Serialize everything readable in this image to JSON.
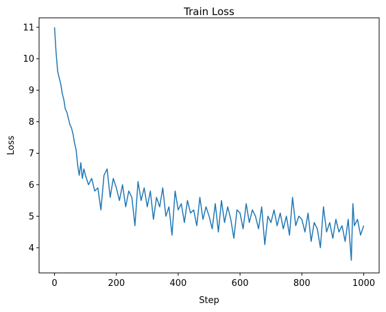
{
  "chart_data": {
    "type": "line",
    "title": "Train Loss",
    "xlabel": "Step",
    "ylabel": "Loss",
    "xlim": [
      -50,
      1050
    ],
    "ylim": [
      3.2,
      11.3
    ],
    "xticks": [
      0,
      200,
      400,
      600,
      800,
      1000
    ],
    "yticks": [
      4,
      5,
      6,
      7,
      8,
      9,
      10,
      11
    ],
    "grid": false,
    "legend": "none",
    "series": [
      {
        "color": "#1f77b4",
        "x": [
          0,
          5,
          10,
          15,
          20,
          25,
          30,
          35,
          40,
          45,
          50,
          55,
          60,
          65,
          70,
          75,
          80,
          85,
          90,
          95,
          100,
          110,
          120,
          130,
          140,
          150,
          160,
          170,
          180,
          190,
          200,
          210,
          220,
          230,
          240,
          250,
          260,
          270,
          280,
          290,
          300,
          310,
          320,
          330,
          340,
          350,
          360,
          370,
          380,
          390,
          400,
          410,
          420,
          430,
          440,
          450,
          460,
          470,
          480,
          490,
          500,
          510,
          520,
          530,
          540,
          550,
          560,
          570,
          580,
          590,
          600,
          610,
          620,
          630,
          640,
          650,
          660,
          670,
          680,
          690,
          700,
          710,
          720,
          730,
          740,
          750,
          760,
          770,
          780,
          790,
          800,
          810,
          820,
          830,
          840,
          850,
          860,
          870,
          880,
          890,
          900,
          910,
          920,
          930,
          940,
          950,
          960,
          965,
          970,
          980,
          990,
          1000
        ],
        "y": [
          11.0,
          10.2,
          9.6,
          9.4,
          9.2,
          8.9,
          8.7,
          8.4,
          8.3,
          8.1,
          7.9,
          7.8,
          7.6,
          7.3,
          7.1,
          6.6,
          6.3,
          6.7,
          6.2,
          6.5,
          6.3,
          6.0,
          6.2,
          5.8,
          5.9,
          5.2,
          6.3,
          6.5,
          5.6,
          6.2,
          5.9,
          5.5,
          6.0,
          5.3,
          5.8,
          5.6,
          4.7,
          6.1,
          5.5,
          5.9,
          5.3,
          5.8,
          4.9,
          5.6,
          5.3,
          5.9,
          5.0,
          5.3,
          4.4,
          5.8,
          5.2,
          5.4,
          4.8,
          5.5,
          5.1,
          5.2,
          4.7,
          5.6,
          4.9,
          5.3,
          5.0,
          4.6,
          5.4,
          4.5,
          5.5,
          4.8,
          5.3,
          4.9,
          4.3,
          5.2,
          5.1,
          4.6,
          5.4,
          4.8,
          5.2,
          5.0,
          4.6,
          5.3,
          4.1,
          5.0,
          4.8,
          5.2,
          4.7,
          5.1,
          4.6,
          5.0,
          4.4,
          5.6,
          4.7,
          5.0,
          4.9,
          4.5,
          5.1,
          4.2,
          4.8,
          4.6,
          4.0,
          5.3,
          4.5,
          4.8,
          4.3,
          4.9,
          4.5,
          4.7,
          4.2,
          4.9,
          3.6,
          5.4,
          4.7,
          4.9,
          4.4,
          4.7
        ]
      }
    ]
  }
}
